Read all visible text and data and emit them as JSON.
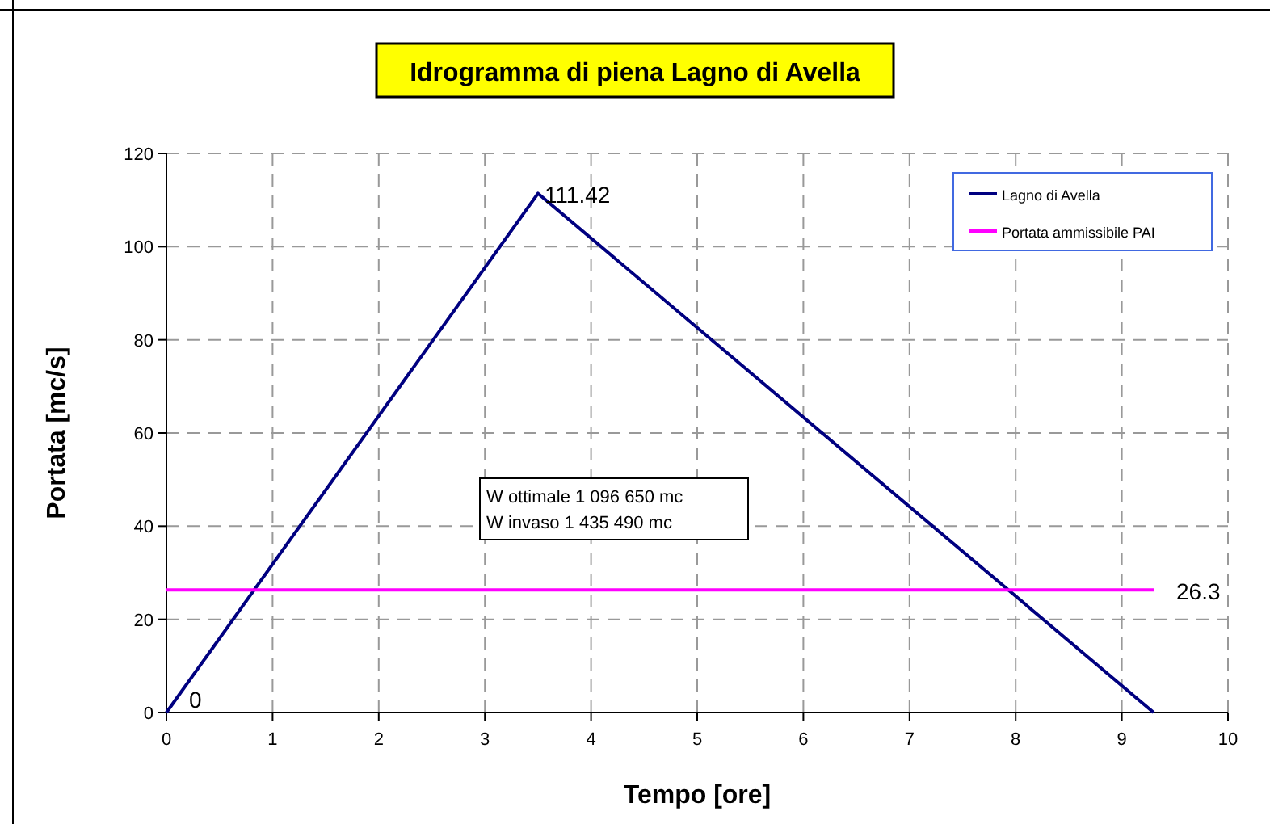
{
  "chart_data": {
    "type": "line",
    "title": "Idrogramma di piena Lagno di Avella",
    "xlabel": "Tempo [ore]",
    "ylabel": "Portata [mc/s]",
    "xlim": [
      0,
      10
    ],
    "xticks": [
      0,
      1,
      2,
      3,
      4,
      5,
      6,
      7,
      8,
      9,
      10
    ],
    "ylim": [
      0,
      120
    ],
    "yticks": [
      0,
      20,
      40,
      60,
      80,
      100,
      120
    ],
    "grid": true,
    "legend": "top right",
    "marker": "none",
    "line_style": "solid",
    "series": [
      {
        "name": "Lagno di Avella",
        "color": "#000080",
        "x": [
          0,
          3.5,
          9.3
        ],
        "values": [
          0,
          111.42,
          0
        ],
        "value_labels": [
          "0",
          "111.42",
          null
        ]
      },
      {
        "name": "Portata ammissibile PAI",
        "color": "#ff00ff",
        "x": [
          0,
          9.3
        ],
        "values": [
          26.3,
          26.3
        ],
        "value_labels": [
          null,
          "26.3"
        ]
      }
    ],
    "annotations": [
      "W ottimale 1 096 650 mc",
      "W invaso 1 435 490 mc"
    ]
  }
}
